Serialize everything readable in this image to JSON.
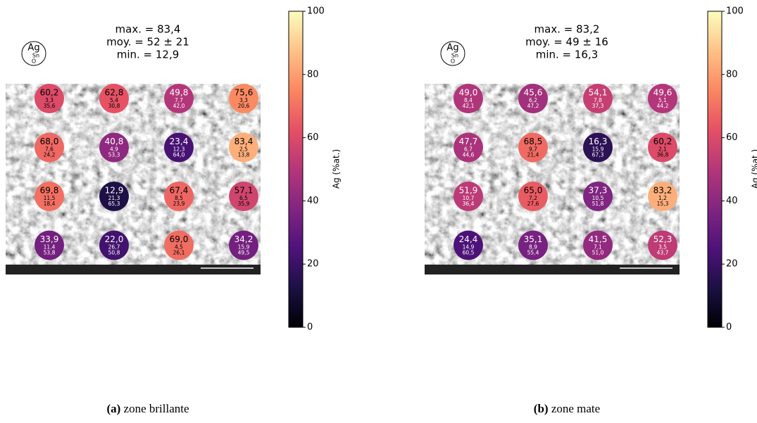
{
  "chart_data": [
    {
      "type": "heatmap",
      "stats": [
        "max. = 83,4",
        "moy. = 52 ± 21",
        "min. = 12,9"
      ],
      "legend": [
        "Ag",
        "Sn",
        "O"
      ],
      "colorbar_label": "Ag (%at.)",
      "colormap": "magma",
      "clim": [
        0,
        100
      ],
      "cticks": [
        0,
        20,
        40,
        60,
        80,
        100
      ],
      "values": [
        60.2,
        62.8,
        49.8,
        75.6,
        68.0,
        40.8,
        23.4,
        83.4,
        69.8,
        12.9,
        67.4,
        57.1,
        33.9,
        22.0,
        69.0,
        34.2
      ],
      "value_labels": [
        "60,2",
        "62,8",
        "49,8",
        "75,6",
        "68,0",
        "40,8",
        "23,4",
        "83,4",
        "69,8",
        "12,9",
        "67,4",
        "57,1",
        "33,9",
        "22,0",
        "69,0",
        "34,2"
      ],
      "sn_values": [
        3.3,
        5.4,
        7.7,
        3.3,
        7.6,
        4.9,
        12.3,
        2.5,
        11.5,
        21.3,
        8.5,
        6.5,
        11.4,
        26.7,
        4.5,
        15.9
      ],
      "sn_labels": [
        "3,3",
        "5,4",
        "7,7",
        "3,3",
        "7,6",
        "4,9",
        "12,3",
        "2,5",
        "11,5",
        "21,3",
        "8,5",
        "6,5",
        "11,4",
        "26,7",
        "4,5",
        "15,9"
      ],
      "o_values": [
        35.6,
        30.8,
        42.0,
        20.6,
        24.2,
        53.3,
        64.0,
        13.8,
        18.4,
        65.3,
        23.9,
        35.9,
        53.8,
        50.8,
        26.1,
        49.5
      ],
      "o_labels": [
        "35,6",
        "30,8",
        "42,0",
        "20,6",
        "24,2",
        "53,3",
        "64,0",
        "13,8",
        "18,4",
        "65,3",
        "23,9",
        "35,9",
        "53,8",
        "50,8",
        "26,1",
        "49,5"
      ],
      "caption_label": "(a)",
      "caption": "zone brillante"
    },
    {
      "type": "heatmap",
      "stats": [
        "max. = 83,2",
        "moy. = 49 ± 16",
        "min. = 16,3"
      ],
      "legend": [
        "Ag",
        "Sn",
        "O"
      ],
      "colorbar_label": "Ag (%at.)",
      "colormap": "magma",
      "clim": [
        0,
        100
      ],
      "cticks": [
        0,
        20,
        40,
        60,
        80,
        100
      ],
      "values": [
        49.0,
        45.6,
        54.1,
        49.6,
        47.7,
        68.5,
        16.3,
        60.2,
        51.9,
        65.0,
        37.3,
        83.2,
        24.4,
        35.1,
        41.5,
        52.3
      ],
      "value_labels": [
        "49,0",
        "45,6",
        "54,1",
        "49,6",
        "47,7",
        "68,5",
        "16,3",
        "60,2",
        "51,9",
        "65,0",
        "37,3",
        "83,2",
        "24,4",
        "35,1",
        "41,5",
        "52,3"
      ],
      "sn_values": [
        8.4,
        6.2,
        7.8,
        5.1,
        6.7,
        9.7,
        15.9,
        2.1,
        10.7,
        7.2,
        10.5,
        1.2,
        14.9,
        8.9,
        7.1,
        3.5
      ],
      "sn_labels": [
        "8,4",
        "6,2",
        "7,8",
        "5,1",
        "6,7",
        "9,7",
        "15,9",
        "2,1",
        "10,7",
        "7,2",
        "10,5",
        "1,2",
        "14,9",
        "8,9",
        "7,1",
        "3,5"
      ],
      "o_values": [
        42.1,
        47.2,
        37.3,
        44.2,
        44.6,
        21.4,
        67.3,
        36.8,
        36.4,
        27.6,
        51.8,
        15.3,
        60.5,
        55.4,
        51.0,
        43.7
      ],
      "o_labels": [
        "42,1",
        "47,2",
        "37,3",
        "44,2",
        "44,6",
        "21,4",
        "67,3",
        "36,8",
        "36,4",
        "27,6",
        "51,8",
        "15,3",
        "60,5",
        "55,4",
        "51,0",
        "43,7"
      ],
      "caption_label": "(b)",
      "caption": "zone mate"
    }
  ]
}
